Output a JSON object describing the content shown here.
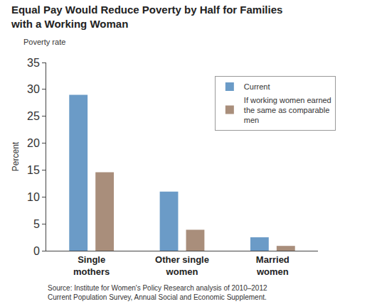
{
  "chart_data": {
    "type": "bar",
    "title": "Equal Pay Would Reduce Poverty by Half for Families with a Working Woman",
    "ylabel": "Percent",
    "annotations": [
      {
        "text": "Poverty rate"
      },
      {
        "text": "Source: Institute for Women's Policy Research analysis of 2010–2012 Current Population Survey, Annual Social and Economic Supplement."
      }
    ],
    "categories": [
      "Single mothers",
      "Other single women",
      "Married women"
    ],
    "series": [
      {
        "name": "Current",
        "color": "#6b9bc7",
        "values": [
          29,
          11,
          2.5
        ]
      },
      {
        "name": "If working women earned the same as comparable men",
        "color": "#a98e7b",
        "values": [
          14.6,
          3.9,
          0.9
        ]
      }
    ],
    "ylim": [
      0,
      35
    ],
    "yticks": [
      0,
      5,
      10,
      15,
      20,
      25,
      30,
      35
    ],
    "grid": false,
    "legend": "upper right",
    "data_labels": false
  }
}
